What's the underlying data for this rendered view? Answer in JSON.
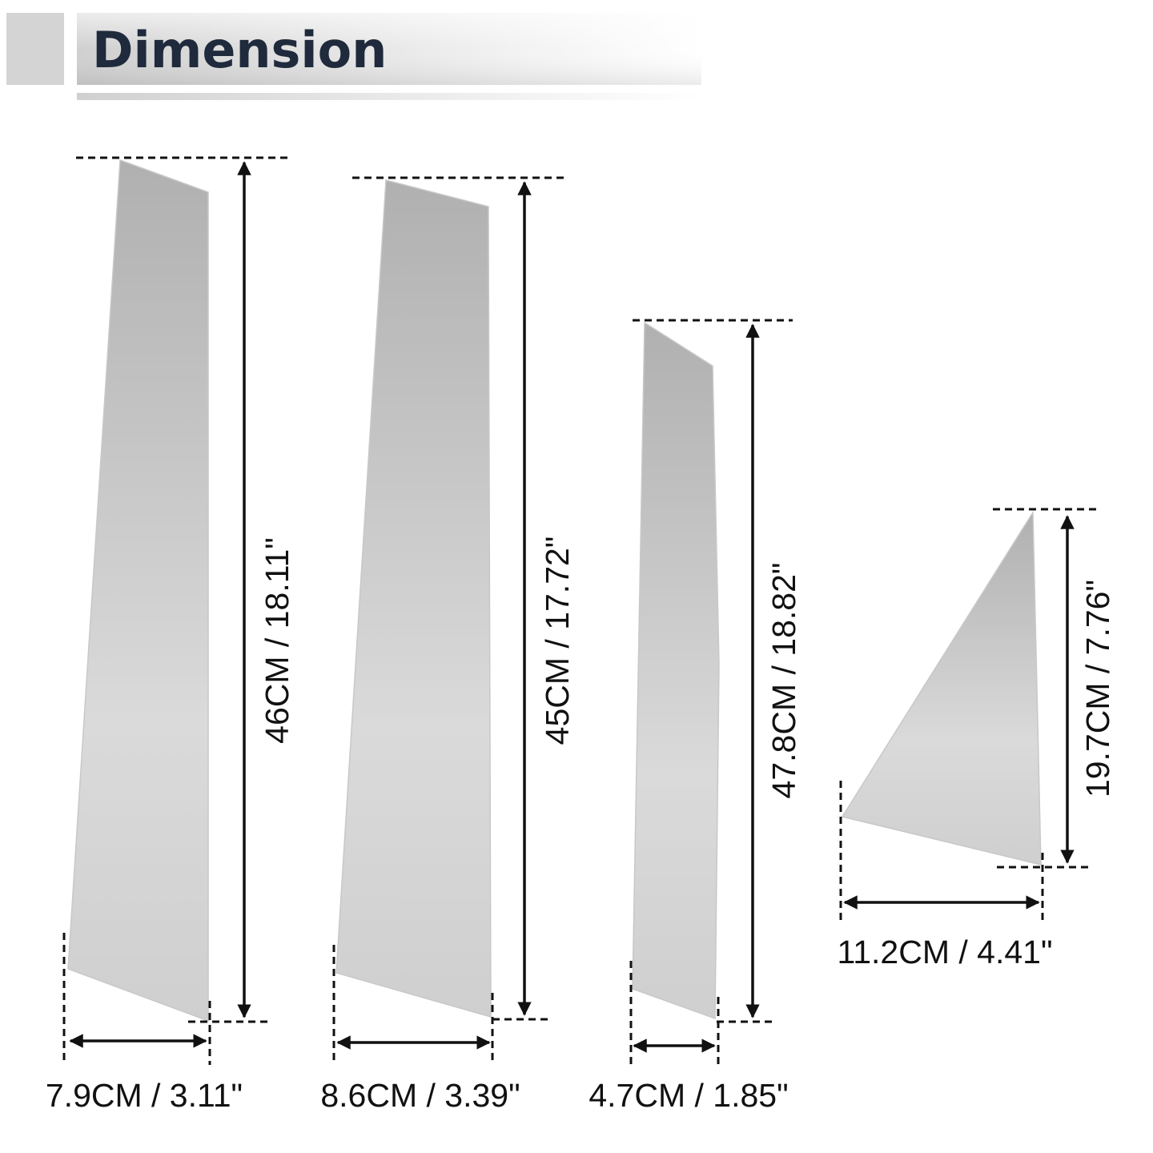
{
  "header": {
    "title": "Dimension"
  },
  "pieces": [
    {
      "height": "46CM / 18.11\"",
      "width": "7.9CM / 3.11\""
    },
    {
      "height": "45CM / 17.72\"",
      "width": "8.6CM / 3.39\""
    },
    {
      "height": "47.8CM / 18.82\"",
      "width": "4.7CM / 1.85\""
    },
    {
      "height": "19.7CM / 7.76\"",
      "width": "11.2CM / 4.41\""
    }
  ]
}
